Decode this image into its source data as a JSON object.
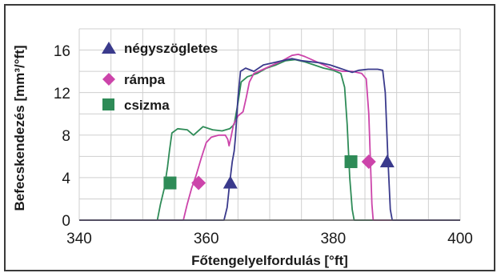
{
  "chart_data": {
    "type": "line",
    "title": "",
    "xlabel": "Főtengelyelfordulás [°ft]",
    "ylabel": "Befecskendezés [mm³/°ft]",
    "xlim": [
      340,
      400
    ],
    "ylim": [
      0,
      18
    ],
    "x_ticks": [
      "340",
      "360",
      "380",
      "400"
    ],
    "y_ticks": [
      "0",
      "4",
      "8",
      "12",
      "16"
    ],
    "grid": true,
    "legend_position": "top-left",
    "series": [
      {
        "name": "négyszögletes",
        "color": "#3a3a8c",
        "marker": "triangle",
        "markers": [
          [
            363.8,
            3.5
          ],
          [
            388.5,
            5.5
          ]
        ],
        "points": [
          [
            340,
            0
          ],
          [
            362.8,
            0
          ],
          [
            363.3,
            1.2
          ],
          [
            363.7,
            3.5
          ],
          [
            364.1,
            5.5
          ],
          [
            364.4,
            6.5
          ],
          [
            364.6,
            7.8
          ],
          [
            365.0,
            11.5
          ],
          [
            365.4,
            14.0
          ],
          [
            366.2,
            14.3
          ],
          [
            367.5,
            14.0
          ],
          [
            369.0,
            14.6
          ],
          [
            370.5,
            14.8
          ],
          [
            372.0,
            15.0
          ],
          [
            373.5,
            15.2
          ],
          [
            375.0,
            15.0
          ],
          [
            376.5,
            14.9
          ],
          [
            378.0,
            14.8
          ],
          [
            379.5,
            14.6
          ],
          [
            381.0,
            14.3
          ],
          [
            382.0,
            14.1
          ],
          [
            383.0,
            13.9
          ],
          [
            384.0,
            14.1
          ],
          [
            385.5,
            14.2
          ],
          [
            387.0,
            14.2
          ],
          [
            387.8,
            14.1
          ],
          [
            388.2,
            12.0
          ],
          [
            388.6,
            6.0
          ],
          [
            389.0,
            1.0
          ],
          [
            389.3,
            0
          ],
          [
            400,
            0
          ]
        ]
      },
      {
        "name": "rámpa",
        "color": "#cc44aa",
        "marker": "diamond",
        "markers": [
          [
            358.8,
            3.5
          ],
          [
            385.6,
            5.5
          ]
        ],
        "points": [
          [
            340,
            0
          ],
          [
            356.4,
            0
          ],
          [
            357.0,
            1.5
          ],
          [
            357.7,
            3.0
          ],
          [
            358.4,
            4.2
          ],
          [
            359.2,
            5.8
          ],
          [
            360.0,
            7.3
          ],
          [
            360.8,
            7.8
          ],
          [
            362.0,
            8.0
          ],
          [
            363.0,
            8.0
          ],
          [
            363.4,
            7.6
          ],
          [
            363.6,
            7.0
          ],
          [
            363.9,
            7.8
          ],
          [
            364.3,
            9.0
          ],
          [
            365.0,
            9.8
          ],
          [
            365.8,
            10.2
          ],
          [
            366.3,
            11.5
          ],
          [
            366.8,
            13.0
          ],
          [
            367.5,
            13.8
          ],
          [
            369.0,
            14.2
          ],
          [
            370.5,
            14.6
          ],
          [
            372.0,
            15.0
          ],
          [
            373.5,
            15.5
          ],
          [
            374.5,
            15.6
          ],
          [
            375.5,
            15.4
          ],
          [
            377.0,
            15.0
          ],
          [
            378.5,
            14.6
          ],
          [
            380.0,
            14.2
          ],
          [
            381.5,
            14.0
          ],
          [
            383.0,
            14.0
          ],
          [
            384.5,
            13.8
          ],
          [
            385.2,
            13.3
          ],
          [
            385.6,
            10.0
          ],
          [
            385.9,
            5.0
          ],
          [
            386.1,
            1.5
          ],
          [
            386.3,
            0
          ],
          [
            400,
            0
          ]
        ]
      },
      {
        "name": "csizma",
        "color": "#2e8b57",
        "marker": "square",
        "markers": [
          [
            354.3,
            3.5
          ],
          [
            382.8,
            5.5
          ]
        ],
        "points": [
          [
            340,
            0
          ],
          [
            352.3,
            0
          ],
          [
            352.8,
            1.5
          ],
          [
            353.4,
            3.0
          ],
          [
            353.9,
            5.0
          ],
          [
            354.2,
            6.5
          ],
          [
            354.6,
            8.2
          ],
          [
            355.5,
            8.6
          ],
          [
            357.0,
            8.5
          ],
          [
            358.0,
            8.0
          ],
          [
            359.5,
            8.8
          ],
          [
            361.0,
            8.5
          ],
          [
            362.5,
            8.4
          ],
          [
            363.7,
            8.6
          ],
          [
            364.4,
            9.0
          ],
          [
            365.0,
            11.0
          ],
          [
            365.5,
            13.0
          ],
          [
            366.5,
            13.5
          ],
          [
            368.0,
            13.8
          ],
          [
            369.5,
            14.3
          ],
          [
            371.0,
            14.6
          ],
          [
            372.5,
            15.0
          ],
          [
            374.0,
            15.1
          ],
          [
            375.5,
            14.9
          ],
          [
            377.0,
            14.6
          ],
          [
            378.5,
            14.3
          ],
          [
            380.0,
            14.1
          ],
          [
            381.2,
            13.8
          ],
          [
            381.8,
            12.5
          ],
          [
            382.2,
            9.0
          ],
          [
            382.6,
            4.0
          ],
          [
            383.0,
            1.0
          ],
          [
            383.3,
            0
          ],
          [
            400,
            0
          ]
        ]
      }
    ]
  }
}
